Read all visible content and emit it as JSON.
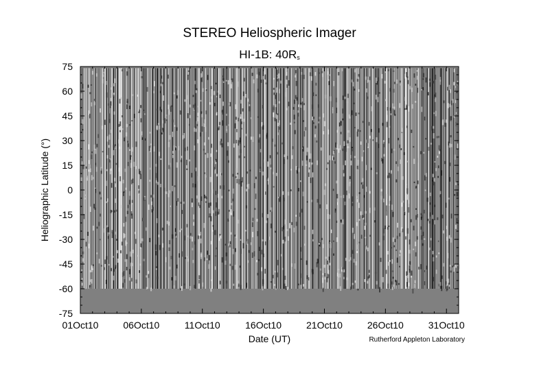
{
  "chart_data": {
    "type": "heatmap",
    "title": "STEREO Heliospheric Imager",
    "subtitle_main": "HI-1B: 40R",
    "subtitle_sub": "s",
    "xlabel": "Date (UT)",
    "ylabel": "Heliographic Latitude (°)",
    "x_ticks": [
      "01Oct10",
      "06Oct10",
      "11Oct10",
      "16Oct10",
      "21Oct10",
      "26Oct10",
      "31Oct10"
    ],
    "x_range_days": [
      0,
      31
    ],
    "y_ticks": [
      75,
      60,
      45,
      30,
      15,
      0,
      -15,
      -30,
      -45,
      -60,
      -75
    ],
    "ylim": [
      -75,
      75
    ],
    "data_latitude_range": [
      -60,
      74
    ],
    "no_data_color": "#808080",
    "colormap": "grayscale running-difference"
  },
  "credit": "Rutherford Appleton Laboratory"
}
